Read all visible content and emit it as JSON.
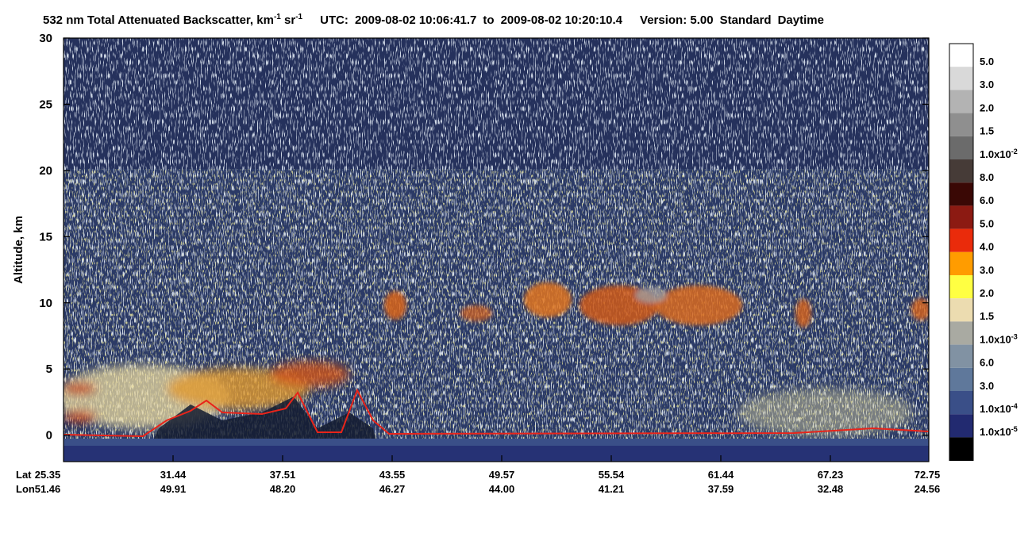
{
  "title": {
    "quantity": "532 nm Total Attenuated Backscatter, km",
    "unit_exp1": "-1",
    "unit2": " sr",
    "unit_exp2": "-1",
    "utc_label": "UTC:",
    "start": "2009-08-02 10:06:41.7",
    "to": "to",
    "end": "2009-08-02 10:20:10.4",
    "version": "Version: 5.00",
    "product": "Standard",
    "time_of_day": "Daytime"
  },
  "y_axis": {
    "label": "Altitude, km",
    "range": [
      -2,
      30
    ],
    "ticks": [
      0,
      5,
      10,
      15,
      20,
      25,
      30
    ]
  },
  "x_axis": {
    "lat_label": "Lat",
    "lon_label": "Lon",
    "lat": [
      "25.35",
      "31.44",
      "37.51",
      "43.55",
      "49.57",
      "55.54",
      "61.44",
      "67.23",
      "72.75"
    ],
    "lon": [
      "51.46",
      "49.91",
      "48.20",
      "46.27",
      "44.00",
      "41.21",
      "37.59",
      "32.48",
      "24.56"
    ]
  },
  "colorbar": [
    {
      "label": "5.0",
      "color": "#ffffff"
    },
    {
      "label": "3.0",
      "color": "#d9d9d9"
    },
    {
      "label": "2.0",
      "color": "#b3b3b3"
    },
    {
      "label": "1.5",
      "color": "#8f8f8f"
    },
    {
      "label": "1.0x10",
      "exponent": "-2",
      "color": "#6b6b6b"
    },
    {
      "label": "8.0",
      "color": "#463b37"
    },
    {
      "label": "6.0",
      "color": "#3a0805"
    },
    {
      "label": "5.0",
      "color": "#8c1a12"
    },
    {
      "label": "4.0",
      "color": "#ea2b0b"
    },
    {
      "label": "3.0",
      "color": "#ff9c00"
    },
    {
      "label": "2.0",
      "color": "#ffff42"
    },
    {
      "label": "1.5",
      "color": "#ecdcb0"
    },
    {
      "label": "1.0x10",
      "exponent": "-3",
      "color": "#a9aaa2"
    },
    {
      "label": "6.0",
      "color": "#8192a3"
    },
    {
      "label": "3.0",
      "color": "#5f789b"
    },
    {
      "label": "1.0x10",
      "exponent": "-4",
      "color": "#3a4f88"
    },
    {
      "label": "1.0x10",
      "exponent": "-5",
      "color": "#222a70"
    }
  ]
}
